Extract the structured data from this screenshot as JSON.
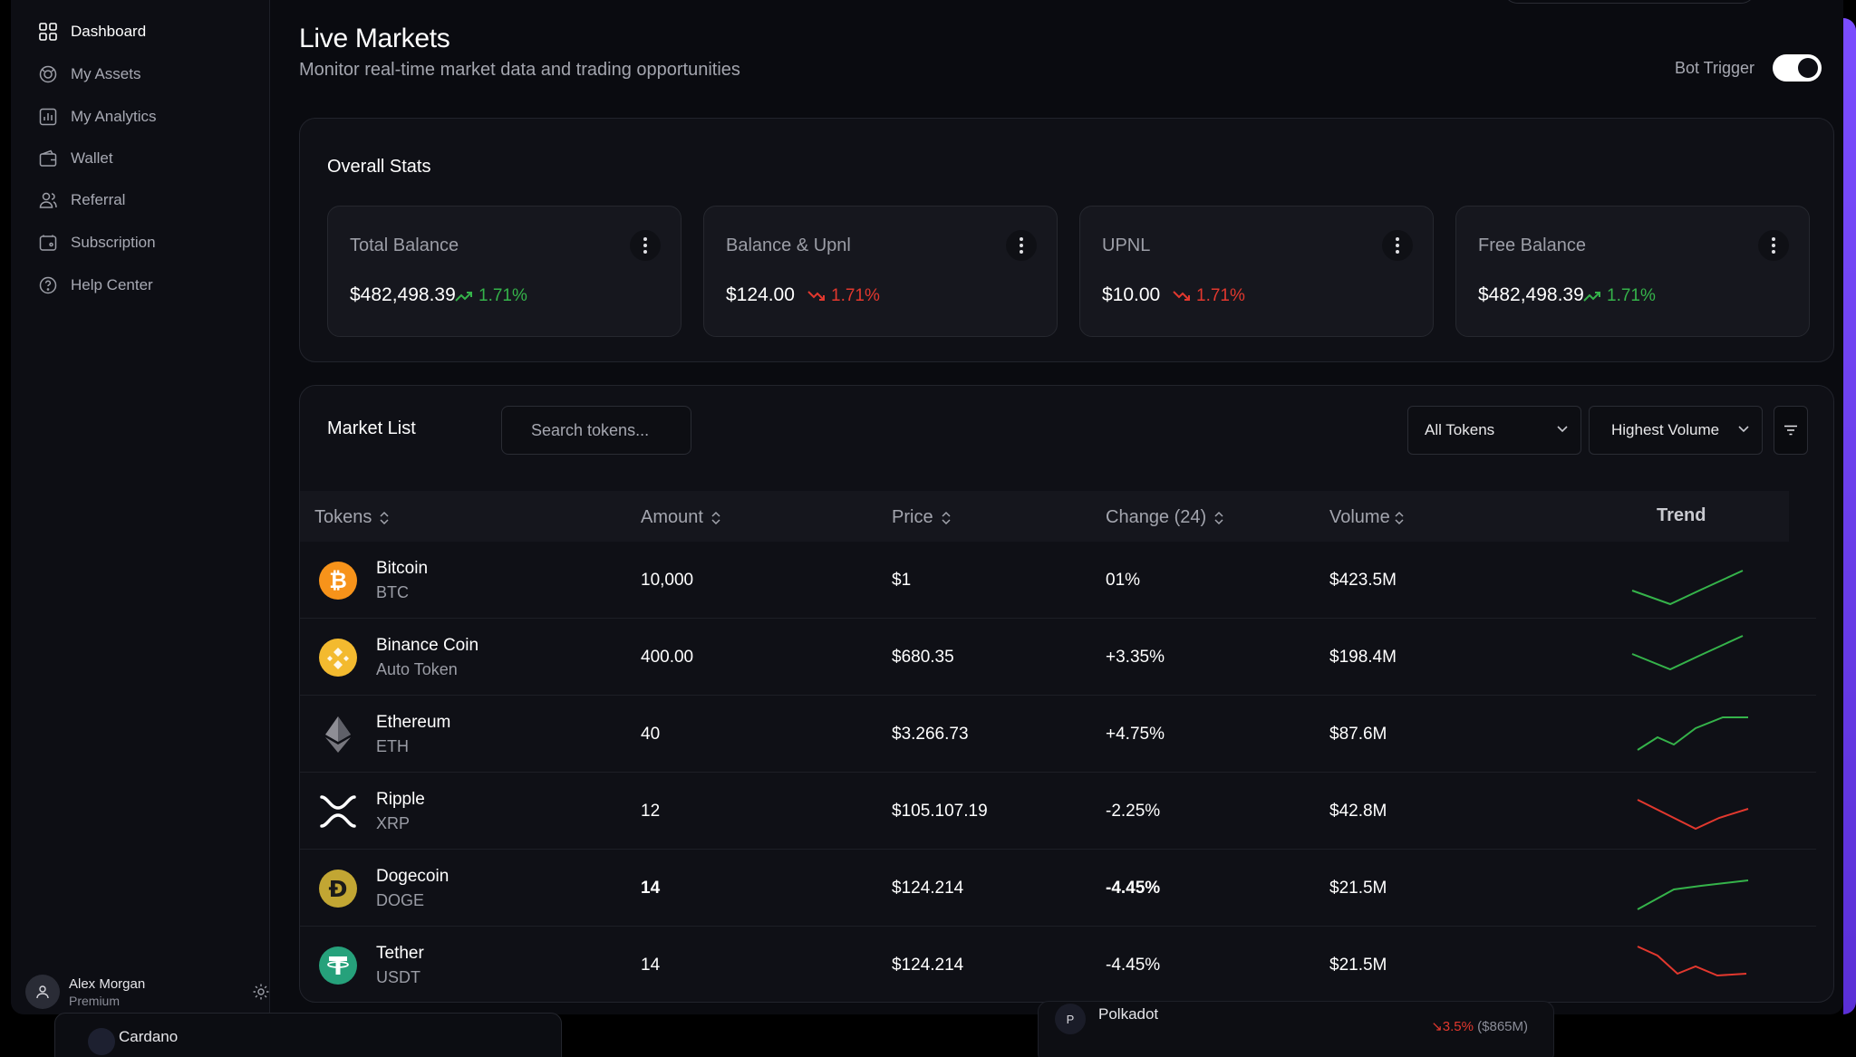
{
  "sidebar": {
    "items": [
      {
        "label": "Dashboard",
        "icon": "grid-icon",
        "active": true
      },
      {
        "label": "My Assets",
        "icon": "coins-icon"
      },
      {
        "label": "My Analytics",
        "icon": "analytics-icon"
      },
      {
        "label": "Wallet",
        "icon": "wallet-icon"
      },
      {
        "label": "Referral",
        "icon": "users-icon"
      },
      {
        "label": "Subscription",
        "icon": "subscription-icon"
      },
      {
        "label": "Help Center",
        "icon": "help-icon"
      }
    ],
    "user": {
      "name": "Alex Morgan",
      "tier": "Premium"
    }
  },
  "header": {
    "title": "Live Markets",
    "subtitle": "Monitor real-time market data and trading opportunities",
    "bot_trigger_label": "Bot Trigger",
    "bot_trigger_on": true
  },
  "stats": {
    "title": "Overall Stats",
    "cards": [
      {
        "label": "Total Balance",
        "value": "$482,498.39",
        "change": "1.71%",
        "direction": "up"
      },
      {
        "label": "Balance & Upnl",
        "value": "$124.00",
        "change": "1.71%",
        "direction": "down"
      },
      {
        "label": "UPNL",
        "value": "$10.00",
        "change": "1.71%",
        "direction": "down"
      },
      {
        "label": "Free Balance",
        "value": "$482,498.39",
        "change": "1.71%",
        "direction": "up"
      }
    ]
  },
  "market": {
    "title": "Market List",
    "search_placeholder": "Search tokens...",
    "filter_tokens": "All Tokens",
    "sort_by": "Highest Volume",
    "columns": {
      "tokens": "Tokens",
      "amount": "Amount",
      "price": "Price",
      "change": "Change (24)",
      "volume": "Volume",
      "trend": "Trend"
    },
    "rows": [
      {
        "name": "Bitcoin",
        "symbol": "BTC",
        "amount": "10,000",
        "price": "$1",
        "change": "01%",
        "change_dir": "neutral",
        "volume": "$423.5M",
        "trend": "up",
        "icon": "bitcoin-icon"
      },
      {
        "name": "Binance Coin",
        "symbol": "Auto Token",
        "amount": "400.00",
        "price": "$680.35",
        "change": "+3.35%",
        "change_dir": "up",
        "volume": "$198.4M",
        "trend": "up",
        "icon": "binance-icon"
      },
      {
        "name": "Ethereum",
        "symbol": "ETH",
        "amount": "40",
        "price": "$3.266.73",
        "change": "+4.75%",
        "change_dir": "up",
        "volume": "$87.6M",
        "trend": "up",
        "icon": "ethereum-icon"
      },
      {
        "name": "Ripple",
        "symbol": "XRP",
        "amount": "12",
        "price": "$105.107.19",
        "change": "-2.25%",
        "change_dir": "down",
        "volume": "$42.8M",
        "trend": "down",
        "icon": "ripple-icon"
      },
      {
        "name": "Dogecoin",
        "symbol": "DOGE",
        "amount": "14",
        "price": "$124.214",
        "change": "-4.45%",
        "change_dir": "down",
        "volume": "$21.5M",
        "trend": "up",
        "icon": "dogecoin-icon"
      },
      {
        "name": "Tether",
        "symbol": "USDT",
        "amount": "14",
        "price": "$124.214",
        "change": "-4.45%",
        "change_dir": "down",
        "volume": "$21.5M",
        "trend": "down",
        "icon": "tether-icon"
      }
    ]
  },
  "peek": {
    "left_label": "Cardano",
    "right_label": "Polkadot",
    "right_avatar": "P",
    "right_change": "3.5%",
    "right_value": "($865M)"
  },
  "colors": {
    "up": "#35b34a",
    "down": "#e2382e",
    "accent": "#7b4dff"
  }
}
